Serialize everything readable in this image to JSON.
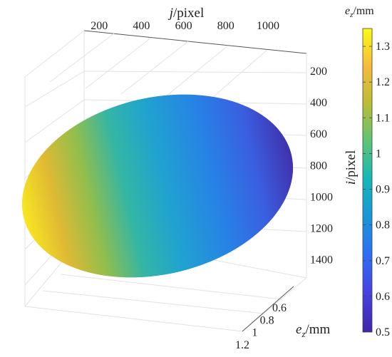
{
  "chart_data": {
    "type": "surface",
    "axes": {
      "j": {
        "label_var": "j",
        "label_unit": "/pixel",
        "ticks": [
          200,
          400,
          600,
          800,
          1000
        ],
        "range": [
          0,
          1100
        ]
      },
      "i": {
        "label_var": "i",
        "label_unit": "/pixel",
        "ticks": [
          200,
          400,
          600,
          800,
          1000,
          1200,
          1400
        ],
        "range": [
          100,
          1550
        ]
      },
      "ez": {
        "label_var": "e",
        "label_sub": "z",
        "label_unit": "/mm",
        "ticks": [
          0.6,
          0.8,
          1,
          1.2
        ],
        "range": [
          0.5,
          1.3
        ]
      }
    },
    "colorbar": {
      "label_var": "e",
      "label_sub": "z",
      "label_unit": "/mm",
      "range": [
        0.5,
        1.35
      ],
      "ticks": [
        0.5,
        0.6,
        0.7,
        0.8,
        0.9,
        1,
        1.1,
        1.2,
        1.3
      ],
      "colormap": "parula"
    },
    "surface": {
      "shape": "ellipse",
      "j_range": [
        50,
        1100
      ],
      "i_range": [
        300,
        1500
      ],
      "ez_min_at_j_max": 0.5,
      "ez_max_at_j_min": 1.33
    }
  }
}
